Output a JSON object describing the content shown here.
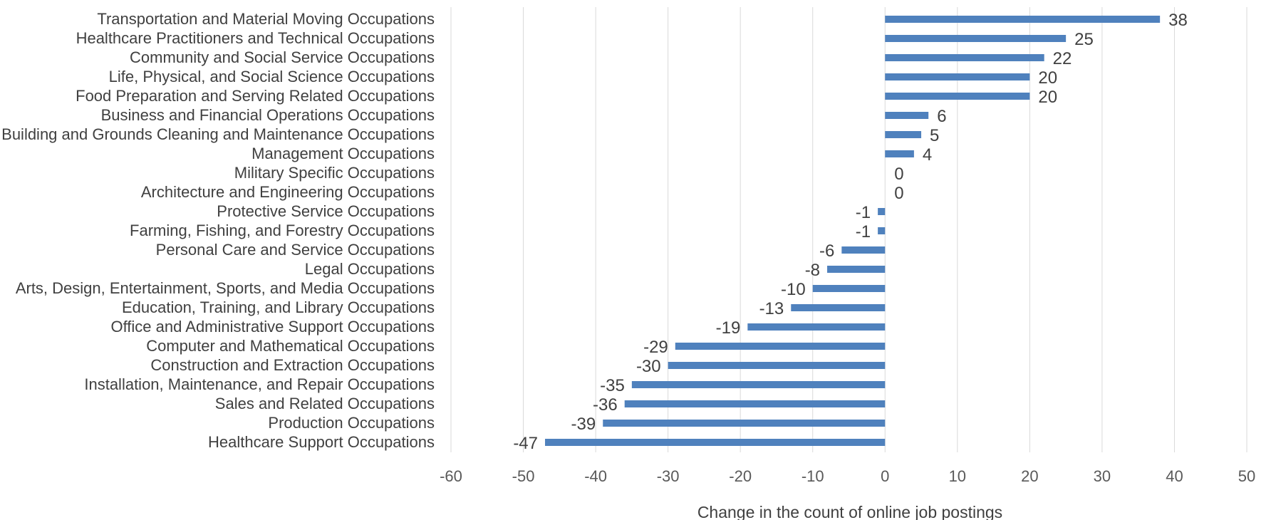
{
  "chart_data": {
    "type": "bar",
    "orientation": "horizontal",
    "categories": [
      "Transportation and Material Moving Occupations",
      "Healthcare Practitioners and Technical Occupations",
      "Community and Social Service Occupations",
      "Life, Physical, and Social Science Occupations",
      "Food Preparation and Serving Related Occupations",
      "Business and Financial Operations Occupations",
      "Building and Grounds Cleaning and Maintenance Occupations",
      "Management Occupations",
      "Military Specific Occupations",
      "Architecture and Engineering Occupations",
      "Protective Service Occupations",
      "Farming, Fishing, and Forestry Occupations",
      "Personal Care and Service Occupations",
      "Legal Occupations",
      "Arts, Design, Entertainment, Sports, and Media Occupations",
      "Education, Training, and Library Occupations",
      "Office and Administrative Support Occupations",
      "Computer and Mathematical Occupations",
      "Construction and Extraction Occupations",
      "Installation, Maintenance, and Repair Occupations",
      "Sales and Related Occupations",
      "Production Occupations",
      "Healthcare Support Occupations"
    ],
    "values": [
      38,
      25,
      22,
      20,
      20,
      6,
      5,
      4,
      0,
      0,
      -1,
      -1,
      -6,
      -8,
      -10,
      -13,
      -19,
      -29,
      -30,
      -35,
      -36,
      -39,
      -47
    ],
    "title": "",
    "xlabel": "Change in the count of online job postings",
    "ylabel": "",
    "xlim": [
      -60,
      50
    ],
    "xticks": [
      -60,
      -50,
      -40,
      -30,
      -20,
      -10,
      0,
      10,
      20,
      30,
      40,
      50
    ],
    "grid": "vertical",
    "legend": "none",
    "bar_color": "#4f81bd"
  }
}
